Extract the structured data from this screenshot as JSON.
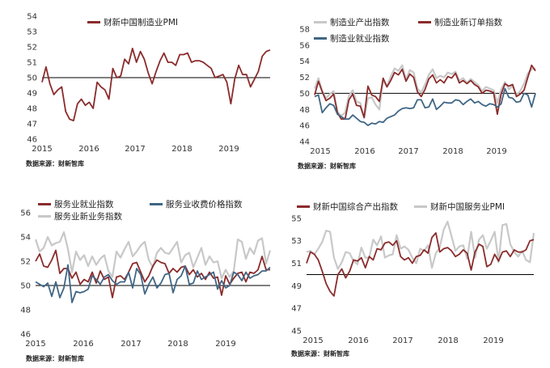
{
  "colors": {
    "red": "#8b2b2b",
    "gray": "#c8c8c8",
    "blue": "#3f6685",
    "axis": "#000000"
  },
  "chart_data": [
    {
      "type": "line",
      "x_labels": [
        "2015",
        "2016",
        "2017",
        "2018",
        "2019"
      ],
      "ylim": [
        46,
        54
      ],
      "y_ticks": [
        46,
        47,
        48,
        49,
        50,
        51,
        52,
        53,
        54
      ],
      "baseline": 50,
      "source": "数据来源：财新智库",
      "series": [
        {
          "name": "财新中国制造业PMI",
          "color": "red",
          "values": [
            49.7,
            50.7,
            49.6,
            48.9,
            49.2,
            49.4,
            47.8,
            47.3,
            47.2,
            48.3,
            48.6,
            48.2,
            48.4,
            48.0,
            49.7,
            49.4,
            49.2,
            48.6,
            50.6,
            50.0,
            50.1,
            51.2,
            50.9,
            51.9,
            51.0,
            51.7,
            51.2,
            50.3,
            49.6,
            50.4,
            51.1,
            51.6,
            51.0,
            51.0,
            50.8,
            51.5,
            51.5,
            51.6,
            51.0,
            51.1,
            51.1,
            51.0,
            50.8,
            50.6,
            50.0,
            50.1,
            50.2,
            49.7,
            48.3,
            49.9,
            50.8,
            50.2,
            50.2,
            49.4,
            49.9,
            50.4,
            51.4,
            51.7,
            51.8
          ]
        }
      ]
    },
    {
      "type": "line",
      "x_labels": [
        "2015",
        "2016",
        "2017",
        "2018",
        "2019"
      ],
      "ylim": [
        44,
        58
      ],
      "y_ticks": [
        44,
        46,
        48,
        50,
        52,
        54,
        56,
        58
      ],
      "baseline": 50,
      "source": "数据来源：财新智库",
      "series": [
        {
          "name": "制造业产出指数",
          "color": "gray",
          "values": [
            50.6,
            51.9,
            50.3,
            49.4,
            49.9,
            50.3,
            47.7,
            47.2,
            47.6,
            49.7,
            50.4,
            49.0,
            48.8,
            46.9,
            49.4,
            49.5,
            48.6,
            48.0,
            51.6,
            50.9,
            52.1,
            53.1,
            52.8,
            53.5,
            51.7,
            52.9,
            52.6,
            50.6,
            50.1,
            51.1,
            52.3,
            53.0,
            51.9,
            52.2,
            52.0,
            52.6,
            52.4,
            52.7,
            51.6,
            51.9,
            51.3,
            51.8,
            51.4,
            51.0,
            50.3,
            50.8,
            50.6,
            50.4,
            48.8,
            50.5,
            51.4,
            50.5,
            50.9,
            49.8,
            50.3,
            51.2,
            52.5,
            53.0,
            53.1
          ]
        },
        {
          "name": "制造业新订单指数",
          "color": "red",
          "values": [
            49.8,
            51.5,
            50.2,
            49.1,
            49.4,
            49.9,
            47.6,
            46.8,
            46.8,
            49.2,
            49.9,
            48.5,
            48.4,
            47.0,
            50.9,
            49.8,
            49.6,
            49.0,
            51.9,
            50.8,
            51.6,
            52.6,
            52.3,
            53.0,
            51.5,
            52.4,
            52.0,
            50.2,
            49.6,
            50.5,
            51.8,
            52.3,
            51.3,
            51.7,
            51.3,
            52.1,
            51.9,
            52.5,
            51.3,
            51.6,
            51.2,
            51.6,
            51.1,
            50.8,
            50.0,
            50.4,
            50.3,
            50.1,
            47.4,
            49.9,
            51.2,
            50.9,
            51.1,
            49.6,
            49.9,
            50.4,
            52.0,
            53.5,
            52.8
          ]
        },
        {
          "name": "制造业就业指数",
          "color": "blue",
          "values": [
            49.6,
            49.8,
            47.6,
            48.2,
            48.7,
            48.5,
            47.4,
            47.1,
            46.8,
            46.8,
            47.3,
            46.9,
            46.5,
            46.4,
            46.0,
            46.3,
            46.2,
            46.5,
            46.4,
            46.9,
            47.1,
            47.3,
            47.8,
            48.1,
            48.2,
            48.1,
            48.2,
            49.2,
            49.2,
            48.2,
            48.3,
            49.3,
            48.0,
            48.4,
            48.9,
            48.8,
            48.8,
            49.2,
            49.1,
            48.6,
            49.0,
            49.3,
            48.8,
            49.0,
            48.6,
            48.4,
            48.7,
            48.6,
            48.3,
            48.7,
            50.6,
            49.5,
            49.4,
            48.9,
            49.0,
            50.0,
            49.8,
            48.3,
            50.0
          ]
        }
      ]
    },
    {
      "type": "line",
      "x_labels": [
        "2015",
        "2016",
        "2017",
        "2018",
        "2019"
      ],
      "ylim": [
        46,
        56
      ],
      "y_ticks": [
        46,
        48,
        50,
        52,
        54,
        56
      ],
      "baseline": 50,
      "source": "数据来源：财新智库",
      "series": [
        {
          "name": "服务业就业指数",
          "color": "red",
          "values": [
            52.0,
            52.6,
            51.6,
            51.5,
            52.1,
            52.9,
            51.0,
            51.4,
            51.4,
            50.6,
            51.1,
            50.1,
            50.5,
            50.3,
            51.1,
            50.2,
            51.2,
            50.5,
            50.7,
            49.0,
            50.7,
            50.8,
            50.5,
            51.1,
            51.8,
            51.9,
            51.1,
            50.3,
            50.8,
            51.6,
            52.1,
            51.9,
            51.8,
            51.0,
            51.4,
            51.1,
            51.5,
            51.6,
            50.9,
            51.3,
            50.7,
            51.0,
            50.5,
            51.1,
            50.6,
            50.7,
            49.2,
            50.8,
            50.1,
            50.6,
            51.0,
            51.1,
            50.3,
            51.1,
            51.0,
            51.3,
            52.4,
            51.3,
            51.3
          ]
        },
        {
          "name": "服务业收费价格指数",
          "color": "blue",
          "values": [
            50.3,
            50.1,
            49.9,
            50.2,
            49.1,
            50.3,
            49.0,
            49.8,
            51.7,
            48.6,
            49.5,
            49.4,
            49.5,
            49.7,
            50.8,
            50.5,
            50.1,
            50.7,
            50.9,
            50.4,
            50.1,
            50.3,
            50.3,
            51.1,
            49.8,
            51.4,
            50.9,
            49.3,
            50.1,
            50.7,
            49.8,
            50.2,
            50.9,
            51.0,
            49.4,
            50.5,
            50.8,
            51.6,
            50.1,
            50.2,
            51.2,
            50.5,
            50.7,
            50.9,
            51.1,
            49.7,
            50.4,
            49.8,
            50.0,
            51.1,
            50.9,
            50.4,
            51.1,
            50.6,
            50.8,
            50.9,
            51.2,
            51.2,
            51.5
          ]
        },
        {
          "name": "服务业新业务指数",
          "color": "gray",
          "values": [
            53.8,
            52.8,
            53.1,
            54.0,
            53.3,
            53.5,
            53.6,
            54.4,
            53.0,
            51.1,
            52.8,
            52.1,
            52.5,
            51.6,
            52.4,
            51.7,
            52.2,
            52.5,
            51.2,
            50.7,
            52.8,
            52.3,
            53.0,
            53.6,
            52.4,
            52.8,
            53.3,
            53.6,
            52.1,
            51.5,
            52.7,
            53.1,
            52.7,
            52.6,
            53.1,
            53.6,
            51.9,
            52.5,
            52.7,
            51.5,
            52.3,
            53.1,
            51.7,
            52.4,
            51.9,
            52.0,
            50.6,
            51.3,
            50.7,
            51.2,
            53.8,
            53.6,
            52.2,
            53.1,
            52.6,
            53.7,
            53.9,
            51.8,
            52.9
          ]
        }
      ]
    },
    {
      "type": "line",
      "x_labels": [
        "2015",
        "2016",
        "2017",
        "2018",
        "2019"
      ],
      "ylim": [
        45,
        56
      ],
      "y_ticks": [
        45,
        47,
        49,
        51,
        53,
        55
      ],
      "baseline": 50,
      "source": "数据来源：财新智库",
      "series": [
        {
          "name": "财新中国综合产出指数",
          "color": "red",
          "values": [
            51.0,
            52.0,
            51.8,
            51.3,
            50.3,
            49.2,
            48.5,
            48.1,
            50.0,
            50.5,
            49.7,
            50.3,
            51.3,
            51.2,
            51.5,
            50.6,
            51.6,
            51.3,
            52.3,
            52.2,
            52.8,
            52.9,
            52.6,
            53.0,
            51.6,
            51.3,
            51.5,
            51.0,
            51.6,
            51.7,
            52.2,
            51.9,
            53.3,
            53.7,
            52.0,
            52.3,
            52.4,
            52.1,
            51.6,
            51.8,
            52.2,
            51.9,
            50.4,
            52.0,
            52.7,
            52.5,
            50.7,
            50.9,
            51.8,
            51.2,
            52.0,
            52.1,
            51.6,
            52.2,
            52.0,
            52.0,
            52.2,
            53.0,
            53.1
          ]
        },
        {
          "name": "财新中国服务业PMI",
          "color": "gray",
          "values": [
            52.0,
            52.1,
            51.8,
            52.3,
            52.9,
            53.9,
            53.8,
            51.5,
            50.5,
            51.1,
            52.0,
            51.9,
            51.2,
            50.9,
            52.4,
            51.5,
            51.5,
            53.1,
            52.6,
            53.4,
            51.5,
            51.7,
            51.8,
            53.5,
            52.3,
            52.5,
            52.2,
            51.5,
            51.0,
            52.3,
            52.1,
            52.6,
            50.6,
            51.9,
            52.4,
            54.0,
            54.7,
            53.4,
            52.1,
            52.5,
            52.6,
            51.4,
            53.8,
            51.5,
            53.1,
            53.5,
            52.3,
            53.0,
            53.8,
            51.1,
            54.4,
            54.5,
            52.7,
            52.0,
            51.6,
            52.1,
            51.3,
            51.1,
            53.7
          ]
        }
      ]
    }
  ]
}
